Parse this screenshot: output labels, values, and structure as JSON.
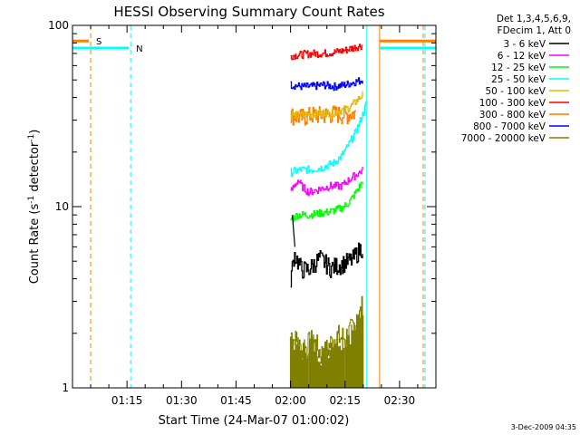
{
  "chart_data": {
    "type": "line",
    "title": "HESSI Observing Summary Count Rates",
    "xlabel": "Start Time (24-Mar-07 01:00:02)",
    "ylabel": "Count Rate (s",
    "ylabel_exp": "-1",
    "ylabel_tail": " detector",
    "ylabel_exp2": "-1",
    "ylabel_close": ")",
    "y_scale": "log",
    "ylim": [
      1,
      100
    ],
    "xlim_minutes": [
      0,
      100
    ],
    "x_ticks": [
      {
        "minute": 15,
        "label": "01:15"
      },
      {
        "minute": 30,
        "label": "01:30"
      },
      {
        "minute": 45,
        "label": "01:45"
      },
      {
        "minute": 60,
        "label": "02:00"
      },
      {
        "minute": 75,
        "label": "02:15"
      },
      {
        "minute": 90,
        "label": "02:30"
      }
    ],
    "y_ticks": [
      {
        "value": 1,
        "label": "1"
      },
      {
        "value": 10,
        "label": "10"
      },
      {
        "value": 100,
        "label": "100"
      }
    ],
    "legend_header": [
      "Det 1,3,4,5,6,9,",
      "FDecim 1, Att 0"
    ],
    "series": [
      {
        "name": "3 - 6 keV",
        "color": "#000000",
        "points": [
          [
            60,
            4
          ],
          [
            61,
            5.5
          ],
          [
            63,
            4.5
          ],
          [
            65,
            4.5
          ],
          [
            68,
            5.2
          ],
          [
            71,
            4.6
          ],
          [
            74,
            4.8
          ],
          [
            77,
            5.1
          ],
          [
            79,
            5.8
          ],
          [
            80,
            6
          ]
        ],
        "spike": [
          [
            60.5,
            9
          ],
          [
            61.2,
            6
          ]
        ]
      },
      {
        "name": "6 - 12 keV",
        "color": "#ff00ff",
        "points": [
          [
            60,
            12
          ],
          [
            61,
            13
          ],
          [
            62,
            14
          ],
          [
            63,
            13
          ],
          [
            65,
            12
          ],
          [
            68,
            12.5
          ],
          [
            71,
            13
          ],
          [
            74,
            13
          ],
          [
            76,
            14
          ],
          [
            78,
            15
          ],
          [
            80,
            16
          ]
        ]
      },
      {
        "name": "12 - 25 keV",
        "color": "#00ff00",
        "points": [
          [
            60,
            8.5
          ],
          [
            62,
            9
          ],
          [
            65,
            9
          ],
          [
            68,
            9.2
          ],
          [
            71,
            9.4
          ],
          [
            74,
            9.8
          ],
          [
            76,
            10.5
          ],
          [
            78,
            12
          ],
          [
            80,
            14
          ]
        ]
      },
      {
        "name": "25 - 50 keV",
        "color": "#00ffff",
        "points": [
          [
            60,
            15.5
          ],
          [
            63,
            16
          ],
          [
            66,
            16
          ],
          [
            69,
            16.5
          ],
          [
            72,
            17.5
          ],
          [
            74,
            19
          ],
          [
            76,
            22
          ],
          [
            78,
            26
          ],
          [
            80,
            33
          ],
          [
            81,
            38
          ]
        ]
      },
      {
        "name": "50 - 100 keV",
        "color": "#e6b800",
        "points": [
          [
            60,
            32
          ],
          [
            63,
            32
          ],
          [
            66,
            32.5
          ],
          [
            69,
            33
          ],
          [
            72,
            33
          ],
          [
            74,
            34
          ],
          [
            76,
            35
          ],
          [
            78,
            38
          ],
          [
            80,
            42
          ]
        ]
      },
      {
        "name": "100 - 300 keV",
        "color": "#ff0000",
        "points": [
          [
            60,
            68
          ],
          [
            63,
            69
          ],
          [
            66,
            70
          ],
          [
            69,
            70
          ],
          [
            72,
            71
          ],
          [
            75,
            73
          ],
          [
            78,
            76
          ],
          [
            80,
            78
          ]
        ]
      },
      {
        "name": "300 - 800 keV",
        "color": "#ff7f00",
        "points": [
          [
            60,
            32
          ],
          [
            63,
            31
          ],
          [
            66,
            32
          ],
          [
            69,
            32
          ],
          [
            72,
            32.5
          ],
          [
            75,
            32
          ],
          [
            78,
            33
          ]
        ]
      },
      {
        "name": "800 - 7000 keV",
        "color": "#0000ff",
        "points": [
          [
            60,
            47
          ],
          [
            63,
            46
          ],
          [
            66,
            46
          ],
          [
            69,
            47
          ],
          [
            72,
            46
          ],
          [
            75,
            47
          ],
          [
            78,
            49
          ],
          [
            80,
            50
          ]
        ]
      },
      {
        "name": "7000 - 20000 keV",
        "color": "#808000",
        "points": [
          [
            60,
            2
          ],
          [
            63,
            1.6
          ],
          [
            66,
            1.8
          ],
          [
            69,
            1.5
          ],
          [
            72,
            1.9
          ],
          [
            75,
            1.9
          ],
          [
            78,
            2.2
          ],
          [
            80,
            2.9
          ]
        ]
      }
    ],
    "saa_markers": [
      {
        "label": "S",
        "color": "#ff7f00",
        "x_minute": 5,
        "y": 82
      },
      {
        "label": "N",
        "color": "#00ffff",
        "x_minute": 16,
        "y": 75
      }
    ],
    "footer_date": "3-Dec-2009 04:35"
  },
  "colors": {
    "orange": "#ff7f00",
    "cyan": "#00ffff"
  }
}
